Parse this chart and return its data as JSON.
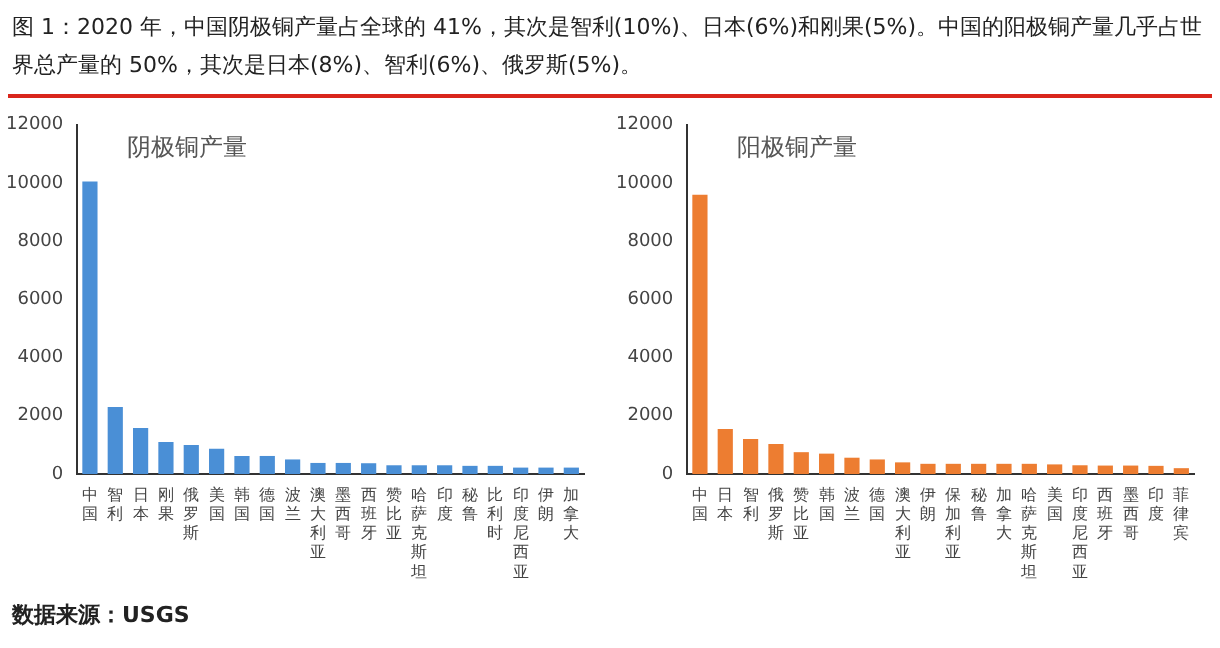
{
  "chart_data": [
    {
      "type": "bar",
      "title": "阴极铜产量",
      "categories": [
        "中国",
        "智利",
        "日本",
        "刚果",
        "俄罗斯",
        "美国",
        "韩国",
        "德国",
        "波兰",
        "澳大利亚",
        "墨西哥",
        "西班牙",
        "赞比亚",
        "哈萨克斯坦",
        "印度",
        "秘鲁",
        "比利时",
        "印度尼西亚",
        "伊朗",
        "加拿大"
      ],
      "values": [
        10050,
        2300,
        1580,
        1100,
        1000,
        870,
        620,
        620,
        500,
        380,
        380,
        370,
        300,
        300,
        300,
        280,
        280,
        220,
        220,
        220
      ],
      "color": "#4a8fd6",
      "ylim": [
        0,
        12000
      ],
      "yticks": [
        0,
        2000,
        4000,
        6000,
        8000,
        10000,
        12000
      ],
      "grid": false,
      "legend": false,
      "annotations": [
        "图 1：2020 年，中国阴极铜产量占全球的 41%，其次是智利(10%)、日本(6%)和刚果(5%)。中国的阳极铜产量几乎占世界总产量的 50%，其次是日本(8%)、智利(6%)、俄罗斯(5%)。",
        "数据来源：USGS"
      ]
    },
    {
      "type": "bar",
      "title": "阳极铜产量",
      "categories": [
        "中国",
        "日本",
        "智利",
        "俄罗斯",
        "赞比亚",
        "韩国",
        "波兰",
        "德国",
        "澳大利亚",
        "伊朗",
        "保加利亚",
        "秘鲁",
        "加拿大",
        "哈萨克斯坦",
        "美国",
        "印度尼西亚",
        "西班牙",
        "墨西哥",
        "印度",
        "菲律宾"
      ],
      "values": [
        9600,
        1550,
        1200,
        1030,
        750,
        700,
        560,
        500,
        400,
        350,
        350,
        350,
        350,
        350,
        330,
        300,
        290,
        290,
        280,
        200
      ],
      "color": "#ed7d31",
      "ylim": [
        0,
        12000
      ],
      "yticks": [
        0,
        2000,
        4000,
        6000,
        8000,
        10000,
        12000
      ],
      "grid": false,
      "legend": false
    }
  ]
}
